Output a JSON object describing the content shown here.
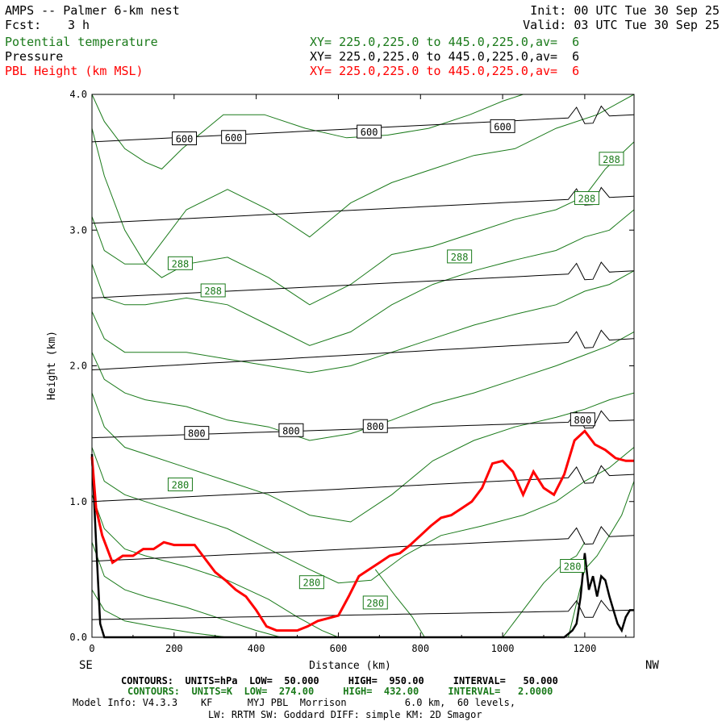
{
  "header": {
    "title": "AMPS -- Palmer 6-km nest",
    "forecast_label": "Fcst:",
    "forecast_value": "3 h",
    "init": "Init: 00 UTC Tue 30 Sep 25",
    "valid": "Valid: 03 UTC Tue 30 Sep 25",
    "field1_name": "Potential temperature",
    "field2_name": "Pressure",
    "field3_name": "PBL Height (km MSL)",
    "field1_xy": "XY= 225.0,225.0 to 445.0,225.0,av=  6",
    "field2_xy": "XY= 225.0,225.0 to 445.0,225.0,av=  6",
    "field3_xy": "XY= 225.0,225.0 to 445.0,225.0,av=  6"
  },
  "colors": {
    "theta": "#1a7a1a",
    "pressure": "#000000",
    "pbl": "#ff0000"
  },
  "chart_data": {
    "type": "line",
    "title": "AMPS -- Palmer 6-km nest",
    "xlabel": "Distance (km)",
    "ylabel": "Height (km)",
    "xlim": [
      0,
      1320
    ],
    "ylim": [
      0.0,
      4.0
    ],
    "x_ticks": [
      0,
      200,
      400,
      600,
      800,
      1000,
      1200
    ],
    "y_ticks": [
      0.0,
      1.0,
      2.0,
      3.0,
      4.0
    ],
    "y_tick_labels": [
      "0.0",
      "1.0",
      "2.0",
      "3.0",
      "4.0"
    ],
    "left_end_label": "SE",
    "right_end_label": "NW",
    "series": [
      {
        "name": "PBL Height (km MSL)",
        "x": [
          0,
          10,
          25,
          50,
          75,
          100,
          125,
          150,
          175,
          200,
          225,
          250,
          275,
          300,
          325,
          350,
          375,
          400,
          425,
          450,
          475,
          500,
          525,
          550,
          575,
          600,
          625,
          650,
          675,
          700,
          725,
          750,
          775,
          800,
          825,
          850,
          875,
          900,
          925,
          950,
          975,
          1000,
          1025,
          1050,
          1075,
          1100,
          1125,
          1150,
          1175,
          1200,
          1225,
          1250,
          1275,
          1300,
          1320
        ],
        "values": [
          1.33,
          0.95,
          0.75,
          0.55,
          0.6,
          0.6,
          0.65,
          0.65,
          0.7,
          0.68,
          0.68,
          0.68,
          0.58,
          0.48,
          0.42,
          0.35,
          0.3,
          0.2,
          0.08,
          0.05,
          0.05,
          0.05,
          0.08,
          0.12,
          0.14,
          0.16,
          0.3,
          0.45,
          0.5,
          0.55,
          0.6,
          0.62,
          0.68,
          0.75,
          0.82,
          0.88,
          0.9,
          0.95,
          1.0,
          1.1,
          1.28,
          1.3,
          1.22,
          1.05,
          1.22,
          1.1,
          1.05,
          1.2,
          1.45,
          1.52,
          1.42,
          1.38,
          1.32,
          1.3,
          1.3
        ]
      },
      {
        "name": "Terrain (km)",
        "x": [
          0,
          10,
          20,
          30,
          40,
          60,
          600,
          1100,
          1150,
          1170,
          1180,
          1190,
          1200,
          1210,
          1220,
          1230,
          1240,
          1250,
          1260,
          1270,
          1280,
          1290,
          1300,
          1310,
          1320
        ],
        "values": [
          1.35,
          0.7,
          0.1,
          0.0,
          0.0,
          0.0,
          0.0,
          0.0,
          0.0,
          0.05,
          0.1,
          0.3,
          0.62,
          0.35,
          0.45,
          0.3,
          0.45,
          0.42,
          0.3,
          0.2,
          0.1,
          0.05,
          0.15,
          0.2,
          0.2
        ]
      }
    ],
    "pressure_contours": {
      "units": "hPa",
      "interval": 50,
      "levels": [
        600,
        650,
        700,
        750,
        800,
        850,
        900,
        950
      ],
      "heights_left_km": [
        3.65,
        3.05,
        2.5,
        1.97,
        1.47,
        1.0,
        0.56,
        0.13
      ],
      "heights_right_km": [
        3.85,
        3.25,
        2.7,
        2.2,
        1.6,
        1.2,
        0.75,
        0.2
      ],
      "labels": [
        {
          "text": "600",
          "x": 225,
          "y": 3.67
        },
        {
          "text": "600",
          "x": 345,
          "y": 3.68
        },
        {
          "text": "600",
          "x": 675,
          "y": 3.72
        },
        {
          "text": "600",
          "x": 1000,
          "y": 3.76
        },
        {
          "text": "800",
          "x": 255,
          "y": 1.5
        },
        {
          "text": "800",
          "x": 485,
          "y": 1.52
        },
        {
          "text": "800",
          "x": 690,
          "y": 1.55
        },
        {
          "text": "800",
          "x": 1195,
          "y": 1.6
        }
      ]
    },
    "theta_contours": {
      "units": "K",
      "interval": 2,
      "curves": [
        {
          "x": [
            0,
            30,
            80,
            130,
            170,
            220,
            320,
            420,
            520,
            620,
            720,
            820,
            920,
            1000,
            1050
          ],
          "y": [
            4.0,
            3.8,
            3.6,
            3.5,
            3.45,
            3.6,
            3.85,
            3.85,
            3.75,
            3.68,
            3.7,
            3.75,
            3.85,
            3.95,
            4.0
          ]
        },
        {
          "x": [
            0,
            30,
            80,
            130,
            230,
            330,
            430,
            530,
            630,
            730,
            830,
            930,
            1030,
            1130,
            1230,
            1320
          ],
          "y": [
            3.75,
            3.4,
            3.0,
            2.75,
            3.15,
            3.3,
            3.15,
            2.95,
            3.2,
            3.35,
            3.45,
            3.55,
            3.6,
            3.75,
            3.85,
            4.0
          ]
        },
        {
          "x": [
            0,
            30,
            80,
            130,
            170,
            230,
            330,
            430,
            530,
            630,
            730,
            830,
            930,
            1030,
            1130,
            1200,
            1250,
            1320
          ],
          "y": [
            3.1,
            2.85,
            2.75,
            2.75,
            2.65,
            2.75,
            2.8,
            2.65,
            2.45,
            2.6,
            2.82,
            2.88,
            2.98,
            3.08,
            3.15,
            3.25,
            3.45,
            3.65
          ]
        },
        {
          "x": [
            0,
            30,
            80,
            130,
            230,
            330,
            430,
            530,
            630,
            730,
            830,
            930,
            1030,
            1130,
            1200,
            1260,
            1320
          ],
          "y": [
            2.75,
            2.5,
            2.45,
            2.45,
            2.5,
            2.45,
            2.3,
            2.15,
            2.25,
            2.45,
            2.6,
            2.7,
            2.78,
            2.85,
            2.95,
            3.0,
            3.15
          ]
        },
        {
          "x": [
            0,
            30,
            80,
            130,
            230,
            330,
            430,
            530,
            630,
            730,
            830,
            930,
            1030,
            1130,
            1200,
            1260,
            1320
          ],
          "y": [
            2.4,
            2.2,
            2.1,
            2.1,
            2.1,
            2.05,
            2.0,
            1.95,
            2.0,
            2.1,
            2.2,
            2.3,
            2.38,
            2.45,
            2.55,
            2.6,
            2.7
          ]
        },
        {
          "x": [
            0,
            30,
            80,
            130,
            230,
            330,
            430,
            530,
            630,
            730,
            830,
            930,
            1030,
            1130,
            1200,
            1260,
            1320
          ],
          "y": [
            2.1,
            1.9,
            1.8,
            1.75,
            1.7,
            1.6,
            1.55,
            1.45,
            1.5,
            1.6,
            1.72,
            1.8,
            1.9,
            2.0,
            2.08,
            2.15,
            2.25
          ]
        },
        {
          "x": [
            0,
            30,
            80,
            130,
            230,
            330,
            430,
            530,
            630,
            730,
            830,
            930,
            1030,
            1130,
            1200,
            1260,
            1320
          ],
          "y": [
            1.8,
            1.55,
            1.4,
            1.35,
            1.25,
            1.15,
            1.05,
            0.9,
            0.85,
            1.05,
            1.3,
            1.45,
            1.55,
            1.62,
            1.68,
            1.75,
            1.8
          ]
        },
        {
          "x": [
            0,
            30,
            80,
            130,
            230,
            330,
            430,
            530,
            600,
            680,
            760,
            850,
            950,
            1050,
            1130,
            1200,
            1260,
            1320
          ],
          "y": [
            1.4,
            1.15,
            1.05,
            1.0,
            0.9,
            0.8,
            0.65,
            0.5,
            0.4,
            0.42,
            0.6,
            0.75,
            0.82,
            0.9,
            1.0,
            1.15,
            1.25,
            1.4
          ]
        },
        {
          "x": [
            0,
            30,
            80,
            130,
            230,
            330,
            430,
            500,
            560,
            600
          ],
          "y": [
            1.05,
            0.8,
            0.65,
            0.6,
            0.52,
            0.42,
            0.28,
            0.15,
            0.05,
            0.0
          ]
        },
        {
          "x": [
            0,
            30,
            80,
            130,
            230,
            330,
            400,
            460
          ],
          "y": [
            0.7,
            0.45,
            0.35,
            0.3,
            0.22,
            0.12,
            0.05,
            0.0
          ]
        },
        {
          "x": [
            0,
            30,
            80,
            150,
            250,
            330
          ],
          "y": [
            0.35,
            0.2,
            0.12,
            0.08,
            0.03,
            0.0
          ]
        },
        {
          "x": [
            690,
            740,
            780,
            800,
            810
          ],
          "y": [
            0.5,
            0.3,
            0.15,
            0.05,
            0.0
          ]
        },
        {
          "x": [
            1000,
            1050,
            1100,
            1150,
            1180,
            1200
          ],
          "y": [
            0.0,
            0.2,
            0.4,
            0.55,
            0.6,
            0.7
          ]
        },
        {
          "x": [
            1160,
            1200,
            1230,
            1260,
            1290,
            1320
          ],
          "y": [
            0.0,
            0.5,
            0.6,
            0.75,
            0.9,
            1.15
          ]
        }
      ],
      "labels": [
        {
          "text": "288",
          "x": 1265,
          "y": 3.52
        },
        {
          "text": "288",
          "x": 1205,
          "y": 3.23
        },
        {
          "text": "288",
          "x": 215,
          "y": 2.75
        },
        {
          "text": "288",
          "x": 295,
          "y": 2.55
        },
        {
          "text": "288",
          "x": 895,
          "y": 2.8
        },
        {
          "text": "280",
          "x": 215,
          "y": 1.12
        },
        {
          "text": "280",
          "x": 535,
          "y": 0.4
        },
        {
          "text": "280",
          "x": 690,
          "y": 0.25
        },
        {
          "text": "280",
          "x": 1170,
          "y": 0.52
        }
      ]
    }
  },
  "footer": {
    "line1_label": "CONTOURS:  UNITS=hPa  LOW=  50.000     HIGH=  950.00     INTERVAL=   50.000",
    "line2_label": "CONTOURS:  UNITS=K  LOW=  274.00     HIGH=  432.00     INTERVAL=   2.0000",
    "line3_label": "Model Info: V4.3.3    KF      MYJ PBL  Morrison          6.0 km,  60 levels,",
    "line4_label": "LW: RRTM SW: Goddard DIFF: simple KM: 2D Smagor"
  }
}
